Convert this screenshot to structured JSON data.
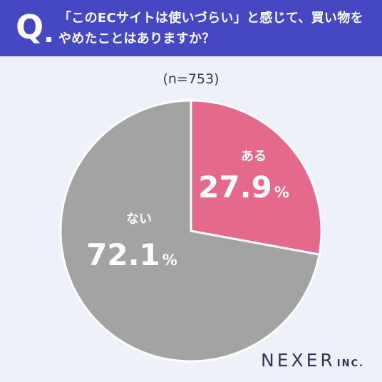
{
  "header": {
    "q_mark": "Q",
    "question_line1": "「このECサイトは使いづらい」と感じて、買い物を",
    "question_line2": "やめたことはありますか？"
  },
  "sample_label": "(n=753)",
  "chart_data": {
    "type": "pie",
    "title": "「このECサイトは使いづらい」と感じて、買い物をやめたことはありますか？",
    "n": 753,
    "slices": [
      {
        "label": "ある",
        "value": 27.9,
        "display": "27.9",
        "unit": "%",
        "color": "#e5698b"
      },
      {
        "label": "ない",
        "value": 72.1,
        "display": "72.1",
        "unit": "%",
        "color": "#a3a3a3"
      }
    ]
  },
  "logo": {
    "main": "NEXER",
    "suffix": "INC."
  },
  "colors": {
    "header": "#4548c2",
    "background": "#eef2f8"
  }
}
